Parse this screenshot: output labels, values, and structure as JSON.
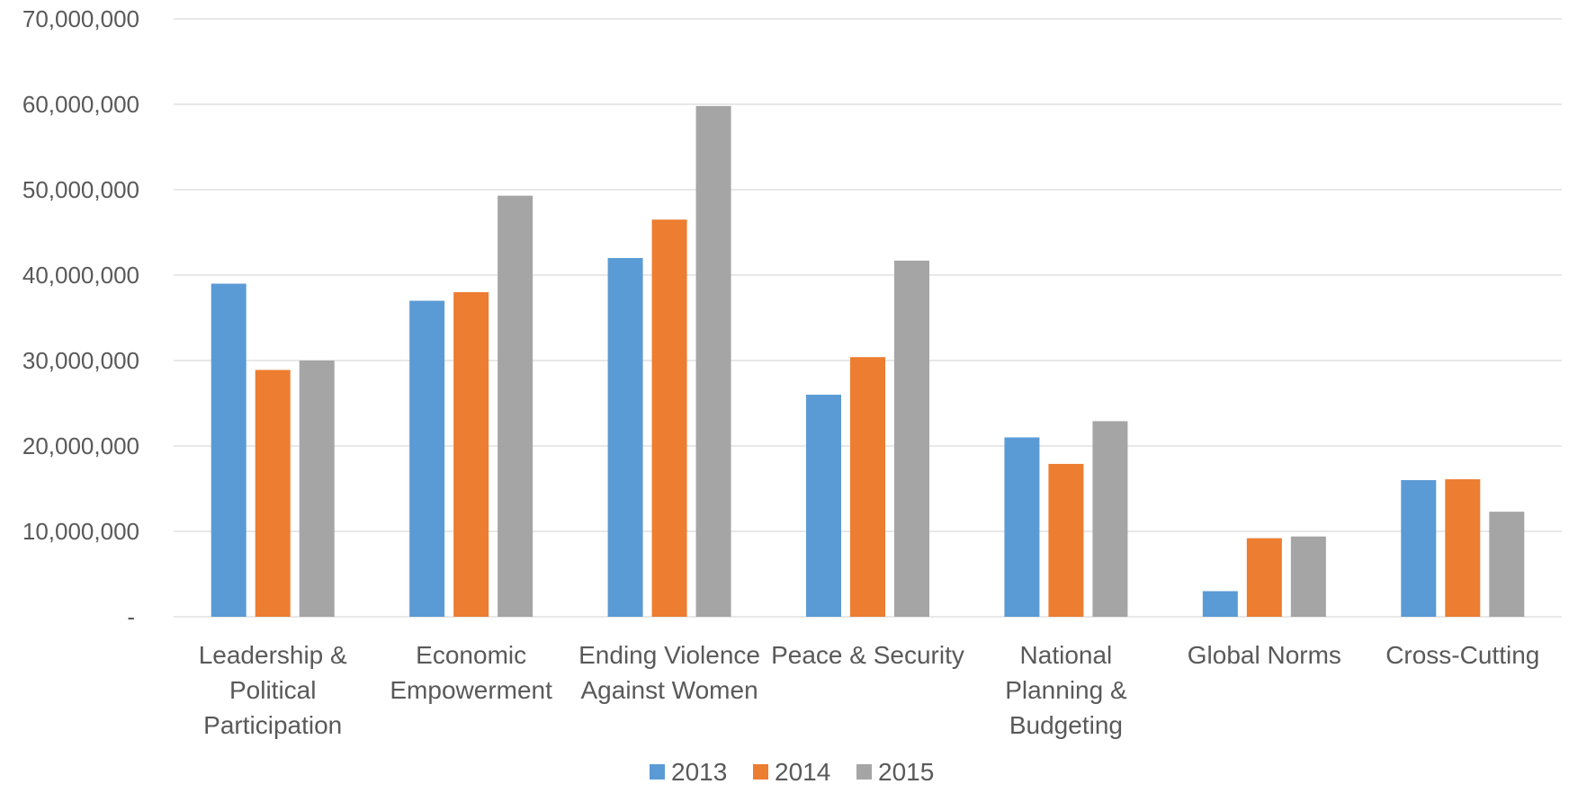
{
  "chart_data": {
    "type": "bar",
    "title": "",
    "xlabel": "",
    "ylabel": "",
    "categories": [
      [
        "Leadership &",
        "Political",
        "Participation"
      ],
      [
        "Economic",
        "Empowerment"
      ],
      [
        "Ending Violence",
        "Against Women"
      ],
      [
        "Peace & Security"
      ],
      [
        "National",
        "Planning &",
        "Budgeting"
      ],
      [
        "Global Norms"
      ],
      [
        "Cross-Cutting"
      ]
    ],
    "series": [
      {
        "name": "2013",
        "color": "#5B9BD5",
        "values": [
          39000000,
          37000000,
          42000000,
          26000000,
          21000000,
          3000000,
          16000000
        ]
      },
      {
        "name": "2014",
        "color": "#ED7D31",
        "values": [
          28900000,
          38000000,
          46500000,
          30400000,
          17900000,
          9200000,
          16100000
        ]
      },
      {
        "name": "2015",
        "color": "#A5A5A5",
        "values": [
          30000000,
          49300000,
          59800000,
          41700000,
          22900000,
          9400000,
          12300000
        ]
      }
    ],
    "ylim": [
      0,
      70000000
    ],
    "yticks": [
      0,
      10000000,
      20000000,
      30000000,
      40000000,
      50000000,
      60000000,
      70000000
    ],
    "ytick_labels": [
      "-",
      "10,000,000",
      "20,000,000",
      "30,000,000",
      "40,000,000",
      "50,000,000",
      "60,000,000",
      "70,000,000"
    ],
    "grid": true,
    "legend_position": "bottom"
  }
}
